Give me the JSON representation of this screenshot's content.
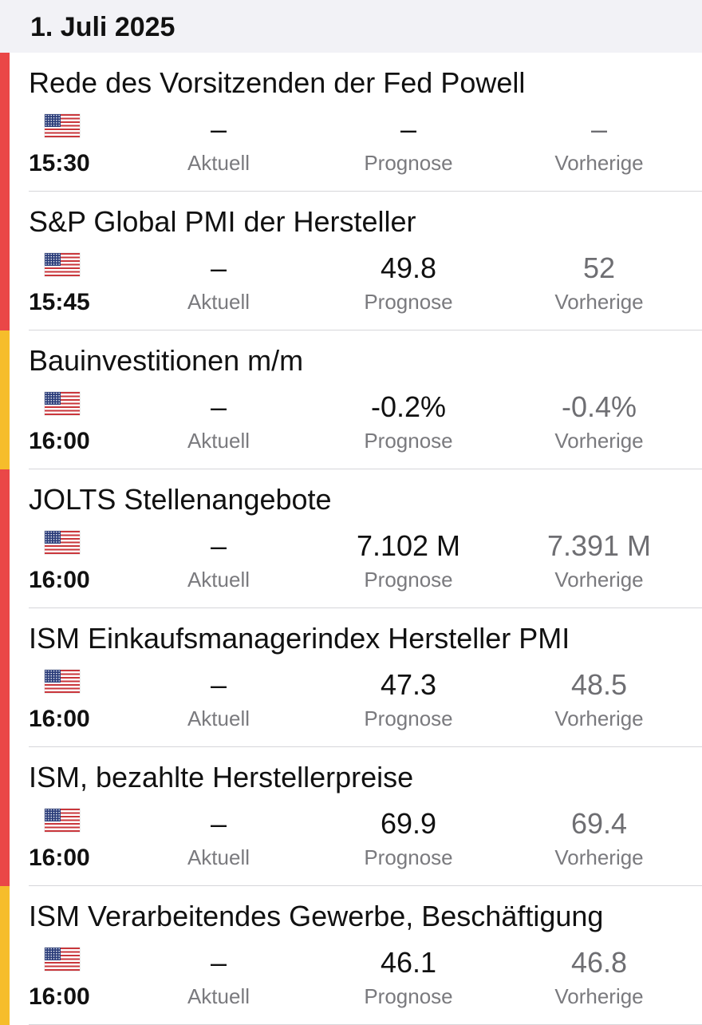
{
  "header": {
    "date": "1. Juli 2025"
  },
  "labels": {
    "actual": "Aktuell",
    "forecast": "Prognose",
    "previous": "Vorherige"
  },
  "colors": {
    "high_importance": "#ea4747",
    "medium_importance": "#f6bd2b"
  },
  "events": [
    {
      "title": "Rede des Vorsitzenden der Fed Powell",
      "country_icon": "us-flag-icon",
      "time": "15:30",
      "importance": "high",
      "actual": "–",
      "forecast": "–",
      "previous": "–"
    },
    {
      "title": "S&P Global PMI der Hersteller",
      "country_icon": "us-flag-icon",
      "time": "15:45",
      "importance": "high",
      "actual": "–",
      "forecast": "49.8",
      "previous": "52"
    },
    {
      "title": "Bauinvestitionen m/m",
      "country_icon": "us-flag-icon",
      "time": "16:00",
      "importance": "medium",
      "actual": "–",
      "forecast": "-0.2%",
      "previous": "-0.4%"
    },
    {
      "title": "JOLTS Stellenangebote",
      "country_icon": "us-flag-icon",
      "time": "16:00",
      "importance": "high",
      "actual": "–",
      "forecast": "7.102 M",
      "previous": "7.391 M"
    },
    {
      "title": "ISM Einkaufsmanagerindex Hersteller PMI",
      "country_icon": "us-flag-icon",
      "time": "16:00",
      "importance": "high",
      "actual": "–",
      "forecast": "47.3",
      "previous": "48.5"
    },
    {
      "title": "ISM, bezahlte Herstellerpreise",
      "country_icon": "us-flag-icon",
      "time": "16:00",
      "importance": "high",
      "actual": "–",
      "forecast": "69.9",
      "previous": "69.4"
    },
    {
      "title": "ISM Verarbeitendes Gewerbe, Beschäftigung",
      "country_icon": "us-flag-icon",
      "time": "16:00",
      "importance": "medium",
      "actual": "–",
      "forecast": "46.1",
      "previous": "46.8"
    }
  ]
}
